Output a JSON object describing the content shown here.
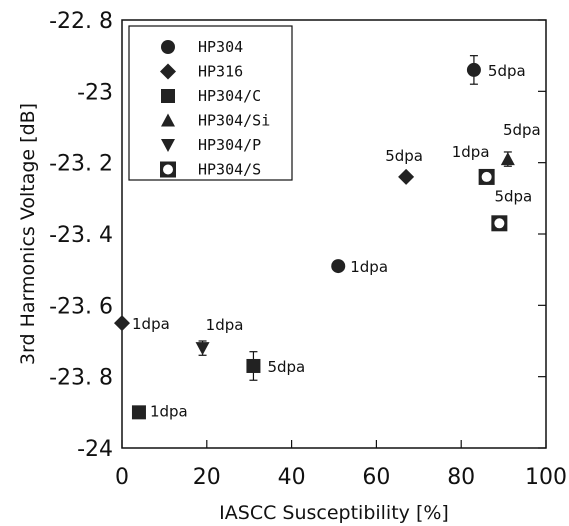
{
  "chart_data": {
    "type": "scatter",
    "xlabel": "IASCC Susceptibility [%]",
    "ylabel": "3rd Harmonics Voltage [dB]",
    "xlim": [
      0,
      100
    ],
    "ylim": [
      -24,
      -22.8
    ],
    "xticks": [
      "0",
      "20",
      "40",
      "60",
      "80",
      "100"
    ],
    "yticks": [
      "-22. 8",
      "-23",
      "-23. 2",
      "-23. 4",
      "-23. 6",
      "-23. 8",
      "-24"
    ],
    "legend_position": "top-left",
    "series": [
      {
        "name": "HP304",
        "marker": "circle",
        "points": [
          {
            "x": 51,
            "y": -23.49,
            "label": "1dpa"
          },
          {
            "x": 83,
            "y": -22.94,
            "label": "5dpa",
            "err": 0.04
          }
        ]
      },
      {
        "name": "HP316",
        "marker": "diamond",
        "points": [
          {
            "x": 0,
            "y": -23.65,
            "label": "1dpa"
          },
          {
            "x": 67,
            "y": -23.24,
            "label": "5dpa"
          }
        ]
      },
      {
        "name": "HP304/C",
        "marker": "square",
        "points": [
          {
            "x": 4,
            "y": -23.9,
            "label": "1dpa"
          },
          {
            "x": 31,
            "y": -23.77,
            "label": "5dpa",
            "err": 0.04
          }
        ]
      },
      {
        "name": "HP304/Si",
        "marker": "triangle-up",
        "points": [
          {
            "x": 91,
            "y": -23.19,
            "label": "5dpa",
            "err": 0.02
          }
        ]
      },
      {
        "name": "HP304/P",
        "marker": "triangle-down",
        "points": [
          {
            "x": 19,
            "y": -23.72,
            "label": "1dpa",
            "err": 0.02
          }
        ]
      },
      {
        "name": "HP304/S",
        "marker": "open-circle-square",
        "points": [
          {
            "x": 86,
            "y": -23.24,
            "label": "1dpa"
          },
          {
            "x": 89,
            "y": -23.37,
            "label": "5dpa"
          }
        ]
      }
    ]
  }
}
